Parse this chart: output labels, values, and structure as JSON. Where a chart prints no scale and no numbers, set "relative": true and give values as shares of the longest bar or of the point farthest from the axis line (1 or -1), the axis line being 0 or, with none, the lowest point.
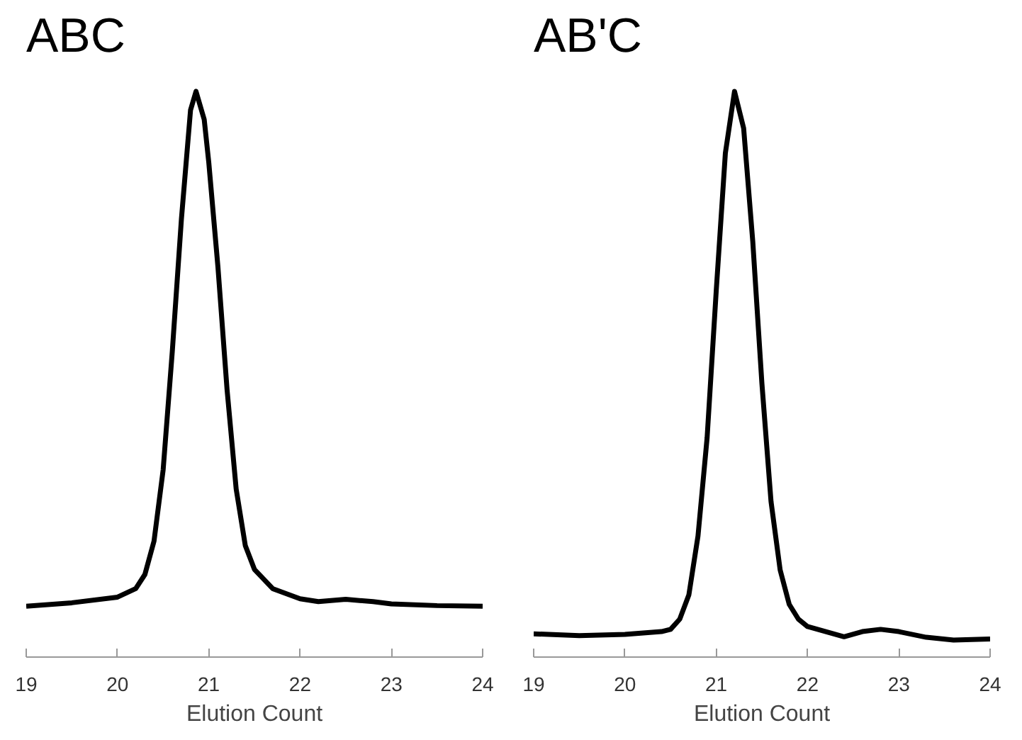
{
  "chart_data": [
    {
      "type": "line",
      "title": "ABC",
      "xlabel": "Elution Count",
      "relative": true,
      "color": "#000000",
      "xlim": [
        19,
        24
      ],
      "xticks": [
        19,
        20,
        21,
        22,
        23,
        24
      ],
      "grid": false,
      "x": [
        19.0,
        19.5,
        20.0,
        20.2,
        20.3,
        20.4,
        20.5,
        20.6,
        20.7,
        20.8,
        20.86,
        20.95,
        21.0,
        21.1,
        21.2,
        21.3,
        21.4,
        21.5,
        21.7,
        22.0,
        22.2,
        22.5,
        22.8,
        23.0,
        23.5,
        24.0
      ],
      "values": [
        0.09,
        0.096,
        0.106,
        0.121,
        0.146,
        0.205,
        0.331,
        0.54,
        0.774,
        0.967,
        1.0,
        0.95,
        0.874,
        0.69,
        0.473,
        0.297,
        0.197,
        0.155,
        0.121,
        0.103,
        0.098,
        0.102,
        0.098,
        0.094,
        0.091,
        0.09
      ]
    },
    {
      "type": "line",
      "title": "AB'C",
      "xlabel": "Elution Count",
      "relative": true,
      "color": "#000000",
      "xlim": [
        19,
        24
      ],
      "xticks": [
        19,
        20,
        21,
        22,
        23,
        24
      ],
      "grid": false,
      "x": [
        19.0,
        19.5,
        20.0,
        20.4,
        20.5,
        20.6,
        20.7,
        20.8,
        20.9,
        21.0,
        21.1,
        21.2,
        21.3,
        21.4,
        21.5,
        21.6,
        21.7,
        21.8,
        21.9,
        22.0,
        22.2,
        22.4,
        22.6,
        22.8,
        23.0,
        23.3,
        23.6,
        24.0
      ],
      "values": [
        0.041,
        0.038,
        0.04,
        0.045,
        0.049,
        0.067,
        0.11,
        0.214,
        0.388,
        0.648,
        0.891,
        1.0,
        0.935,
        0.735,
        0.484,
        0.275,
        0.154,
        0.093,
        0.067,
        0.054,
        0.045,
        0.036,
        0.045,
        0.049,
        0.045,
        0.035,
        0.03,
        0.032
      ]
    }
  ]
}
